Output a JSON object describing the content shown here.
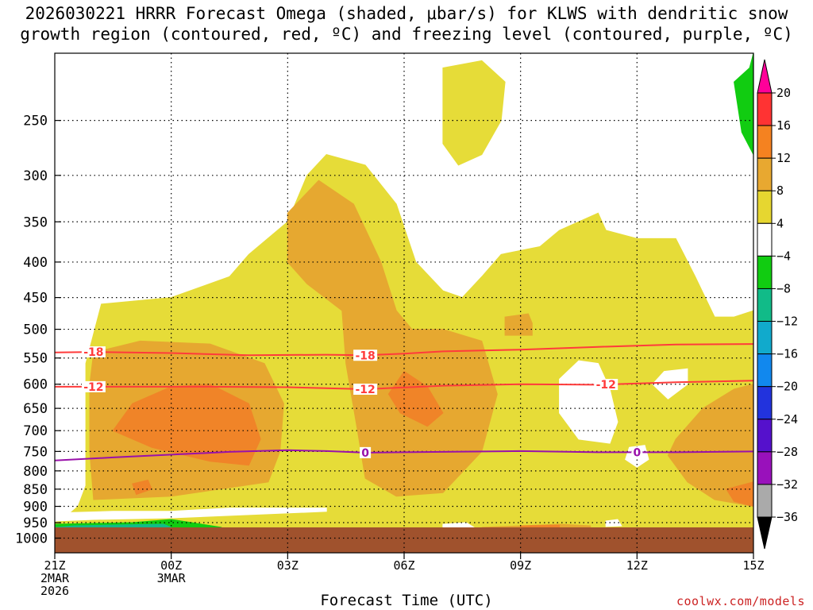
{
  "title": {
    "line1": "2026030221 HRRR Forecast Omega (shaded, μbar/s) for KLWS with dendritic snow",
    "line2": "growth region (contoured, red, ºC) and freezing level (contoured, purple, ºC)"
  },
  "credit": "coolwx.com/models",
  "chart_data": {
    "type": "heatmap",
    "xlabel": "Forecast Time (UTC)",
    "x": {
      "unit": "forecast hour",
      "range": [
        0,
        18
      ],
      "ticks": [
        {
          "hour": 0,
          "label": "21Z",
          "label2": "2MAR",
          "label3": "2026"
        },
        {
          "hour": 3,
          "label": "00Z",
          "label2": "3MAR",
          "label3": ""
        },
        {
          "hour": 6,
          "label": "03Z",
          "label2": "",
          "label3": ""
        },
        {
          "hour": 9,
          "label": "06Z",
          "label2": "",
          "label3": ""
        },
        {
          "hour": 12,
          "label": "09Z",
          "label2": "",
          "label3": ""
        },
        {
          "hour": 15,
          "label": "12Z",
          "label2": "",
          "label3": ""
        },
        {
          "hour": 18,
          "label": "15Z",
          "label2": "",
          "label3": ""
        }
      ]
    },
    "y": {
      "unit": "hPa",
      "scale": "log",
      "range": [
        1050,
        200
      ],
      "ticks": [
        250,
        300,
        350,
        400,
        450,
        500,
        550,
        600,
        650,
        700,
        750,
        800,
        850,
        900,
        950,
        1000
      ]
    },
    "grid": true,
    "colorbar": {
      "levels": [
        "20",
        "16",
        "12",
        "8",
        "4",
        "−4",
        "−8",
        "−12",
        "−16",
        "−20",
        "−24",
        "−28",
        "−32",
        "−36"
      ],
      "colors": [
        "#ff0099",
        "#ff3333",
        "#f58220",
        "#e8a830",
        "#e6d630",
        "#ffffff",
        "#11cc11",
        "#11bb88",
        "#11aacc",
        "#1188ee",
        "#2233dd",
        "#5511cc",
        "#9911bb",
        "#aaaaaa",
        "#000000"
      ]
    },
    "colors": {
      "plus4_8": "#e6dc38",
      "plus8_12": "#e6a830",
      "plus12_16": "#f08428",
      "minus4_8": "#11cc11",
      "minus8_12": "#11bb88",
      "terrain": "#a0522d",
      "dgz": "#ff3b3b",
      "freezing": "#9911aa"
    },
    "omega_regions": [
      {
        "level": "4 to 8",
        "points": [
          [
            1.2,
            460
          ],
          [
            3,
            450
          ],
          [
            4.5,
            420
          ],
          [
            5,
            390
          ],
          [
            6,
            350
          ],
          [
            6.5,
            300
          ],
          [
            7,
            280
          ],
          [
            8,
            290
          ],
          [
            8.8,
            330
          ],
          [
            9.3,
            400
          ],
          [
            10,
            440
          ],
          [
            10.5,
            450
          ],
          [
            11,
            420
          ],
          [
            11.5,
            390
          ],
          [
            12.5,
            380
          ],
          [
            13,
            360
          ],
          [
            14,
            340
          ],
          [
            14.2,
            360
          ],
          [
            15,
            370
          ],
          [
            16,
            370
          ],
          [
            16.5,
            420
          ],
          [
            17,
            480
          ],
          [
            17.5,
            480
          ],
          [
            18,
            470
          ],
          [
            18,
            965
          ],
          [
            0,
            965
          ],
          [
            0,
            950
          ],
          [
            0.3,
            930
          ],
          [
            0.6,
            900
          ],
          [
            0.8,
            840
          ],
          [
            0.8,
            700
          ],
          [
            0.8,
            560
          ]
        ]
      },
      {
        "level": "4 to 8",
        "points": [
          [
            10,
            210
          ],
          [
            11,
            205
          ],
          [
            11.6,
            220
          ],
          [
            11.5,
            250
          ],
          [
            11,
            280
          ],
          [
            10.4,
            290
          ],
          [
            10,
            270
          ]
        ]
      },
      {
        "level": "8 to 12",
        "points": [
          [
            1,
            540
          ],
          [
            2.2,
            520
          ],
          [
            4,
            525
          ],
          [
            5.4,
            560
          ],
          [
            5.9,
            640
          ],
          [
            5.8,
            750
          ],
          [
            5.5,
            830
          ],
          [
            3,
            870
          ],
          [
            1,
            880
          ],
          [
            0.9,
            750
          ],
          [
            0.9,
            600
          ]
        ]
      },
      {
        "level": "8 to 12",
        "points": [
          [
            6,
            340
          ],
          [
            6.8,
            305
          ],
          [
            7.7,
            330
          ],
          [
            8.4,
            400
          ],
          [
            8.8,
            470
          ],
          [
            9.2,
            500
          ],
          [
            10,
            500
          ],
          [
            11,
            520
          ],
          [
            11.4,
            620
          ],
          [
            11,
            750
          ],
          [
            10,
            860
          ],
          [
            8.8,
            870
          ],
          [
            8,
            820
          ],
          [
            7.8,
            700
          ],
          [
            7.5,
            560
          ],
          [
            7.4,
            470
          ],
          [
            6.5,
            430
          ],
          [
            6,
            400
          ]
        ]
      },
      {
        "level": "8 to 12",
        "points": [
          [
            11.6,
            480
          ],
          [
            12.2,
            475
          ],
          [
            12.3,
            490
          ],
          [
            12.3,
            510
          ],
          [
            11.6,
            510
          ]
        ]
      },
      {
        "level": "8 to 12",
        "points": [
          [
            16,
            720
          ],
          [
            16.7,
            650
          ],
          [
            17.5,
            610
          ],
          [
            18,
            600
          ],
          [
            18,
            900
          ],
          [
            17,
            880
          ],
          [
            16.3,
            830
          ],
          [
            15.8,
            760
          ]
        ]
      },
      {
        "level": "8 to 12",
        "points": [
          [
            11,
            965
          ],
          [
            13,
            955
          ],
          [
            13.8,
            960
          ],
          [
            13.8,
            965
          ]
        ]
      },
      {
        "level": "12 to 16",
        "points": [
          [
            1.5,
            700
          ],
          [
            2,
            640
          ],
          [
            3,
            605
          ],
          [
            4,
            600
          ],
          [
            5,
            640
          ],
          [
            5.3,
            720
          ],
          [
            5,
            785
          ],
          [
            4,
            775
          ],
          [
            2.5,
            740
          ]
        ]
      },
      {
        "level": "12 to 16",
        "points": [
          [
            8.6,
            620
          ],
          [
            9,
            575
          ],
          [
            9.6,
            605
          ],
          [
            10,
            660
          ],
          [
            9.6,
            690
          ],
          [
            8.9,
            660
          ]
        ]
      },
      {
        "level": "12 to 16",
        "points": [
          [
            2,
            835
          ],
          [
            2.4,
            825
          ],
          [
            2.5,
            850
          ],
          [
            2.1,
            865
          ]
        ]
      },
      {
        "level": "12 to 16",
        "points": [
          [
            17.3,
            850
          ],
          [
            18,
            830
          ],
          [
            18,
            900
          ],
          [
            17.5,
            885
          ]
        ]
      },
      {
        "level": "12 to 16",
        "points": [
          [
            12,
            960
          ],
          [
            13,
            958
          ],
          [
            13,
            965
          ],
          [
            12,
            965
          ]
        ]
      },
      {
        "level": "below 4",
        "points": [
          [
            13,
            590
          ],
          [
            13.5,
            555
          ],
          [
            14,
            560
          ],
          [
            14.3,
            610
          ],
          [
            14.5,
            680
          ],
          [
            14.3,
            730
          ],
          [
            13.5,
            720
          ],
          [
            13,
            660
          ]
        ]
      },
      {
        "level": "below 4",
        "points": [
          [
            15.4,
            600
          ],
          [
            15.7,
            575
          ],
          [
            16.3,
            570
          ],
          [
            16.3,
            600
          ],
          [
            15.8,
            630
          ]
        ]
      },
      {
        "level": "below 4",
        "points": [
          [
            14.8,
            740
          ],
          [
            15.2,
            735
          ],
          [
            15.3,
            770
          ],
          [
            15,
            790
          ],
          [
            14.7,
            770
          ]
        ]
      },
      {
        "level": "below 4",
        "points": [
          [
            0,
            920
          ],
          [
            1.5,
            915
          ],
          [
            3,
            915
          ],
          [
            4.5,
            905
          ],
          [
            7,
            905
          ],
          [
            7,
            915
          ],
          [
            3,
            935
          ],
          [
            1,
            940
          ],
          [
            0,
            945
          ]
        ]
      },
      {
        "level": "below 4",
        "points": [
          [
            10,
            955
          ],
          [
            10.6,
            950
          ],
          [
            10.8,
            965
          ],
          [
            10,
            965
          ]
        ]
      },
      {
        "level": "below 4",
        "points": [
          [
            14.2,
            945
          ],
          [
            14.5,
            940
          ],
          [
            14.6,
            960
          ],
          [
            14.2,
            962
          ]
        ]
      },
      {
        "level": "-4 to -8",
        "points": [
          [
            0,
            955
          ],
          [
            2,
            950
          ],
          [
            3,
            940
          ],
          [
            4.3,
            965
          ],
          [
            0,
            965
          ]
        ]
      },
      {
        "level": "-8 to -12",
        "points": [
          [
            0,
            965
          ],
          [
            0.5,
            960
          ],
          [
            2.8,
            955
          ],
          [
            3,
            965
          ]
        ]
      },
      {
        "level": "-4 to -8",
        "points": [
          [
            17.9,
            210
          ],
          [
            18,
            200
          ],
          [
            18,
            280
          ],
          [
            17.7,
            260
          ],
          [
            17.5,
            220
          ]
        ]
      }
    ],
    "terrain_top_hPa": 965,
    "series": [
      {
        "name": "-18",
        "color_key": "dgz",
        "values": [
          [
            0,
            540
          ],
          [
            1,
            539
          ],
          [
            3,
            541
          ],
          [
            5,
            545
          ],
          [
            7,
            544
          ],
          [
            8,
            545
          ],
          [
            9,
            542
          ],
          [
            10,
            538
          ],
          [
            12,
            535
          ],
          [
            14,
            530
          ],
          [
            16,
            526
          ],
          [
            18,
            525
          ]
        ],
        "labels": [
          {
            "x": 1,
            "text": "-18"
          },
          {
            "x": 8,
            "text": "-18"
          }
        ]
      },
      {
        "name": "-12",
        "color_key": "dgz",
        "values": [
          [
            0,
            605
          ],
          [
            2,
            605
          ],
          [
            4,
            605
          ],
          [
            6,
            606
          ],
          [
            8,
            610
          ],
          [
            10,
            603
          ],
          [
            12,
            600
          ],
          [
            14,
            601
          ],
          [
            16,
            596
          ],
          [
            18,
            593
          ]
        ],
        "labels": [
          {
            "x": 1,
            "text": "-12"
          },
          {
            "x": 8,
            "text": "-12"
          },
          {
            "x": 14.2,
            "text": "-12"
          }
        ]
      },
      {
        "name": "0",
        "color_key": "freezing",
        "values": [
          [
            0,
            773
          ],
          [
            1.5,
            765
          ],
          [
            3,
            758
          ],
          [
            4.5,
            751
          ],
          [
            6,
            747
          ],
          [
            7,
            749
          ],
          [
            8,
            753
          ],
          [
            10,
            751
          ],
          [
            12,
            749
          ],
          [
            14,
            752
          ],
          [
            16,
            752
          ],
          [
            18,
            750
          ]
        ],
        "labels": [
          {
            "x": 8,
            "text": "0"
          },
          {
            "x": 15,
            "text": "0"
          }
        ]
      }
    ]
  }
}
